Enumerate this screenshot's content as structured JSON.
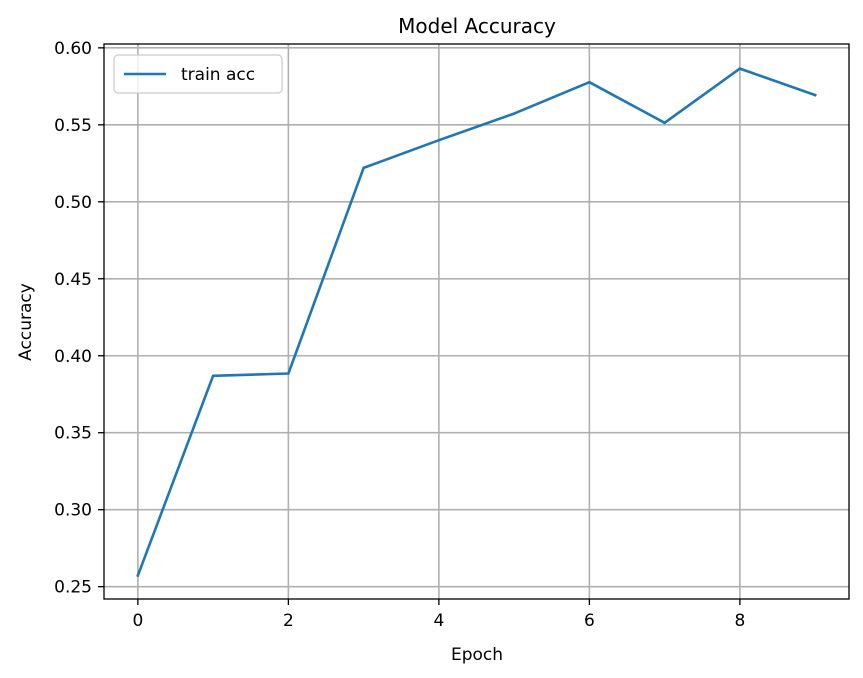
{
  "chart_data": {
    "type": "line",
    "title": "Model Accuracy",
    "xlabel": "Epoch",
    "ylabel": "Accuracy",
    "xlim": [
      -0.45,
      9.45
    ],
    "ylim": [
      0.242,
      0.6025
    ],
    "xticks": [
      0,
      2,
      4,
      6,
      8
    ],
    "xtick_labels": [
      "0",
      "2",
      "4",
      "6",
      "8"
    ],
    "yticks": [
      0.25,
      0.3,
      0.35,
      0.4,
      0.45,
      0.5,
      0.55,
      0.6
    ],
    "ytick_labels": [
      "0.25",
      "0.30",
      "0.35",
      "0.40",
      "0.45",
      "0.50",
      "0.55",
      "0.60"
    ],
    "grid": true,
    "legend_position": "upper-left",
    "series": [
      {
        "name": "train acc",
        "color": "#1f77b4",
        "x": [
          0,
          1,
          2,
          3,
          4,
          5,
          6,
          7,
          8,
          9
        ],
        "y": [
          0.2573,
          0.387,
          0.3885,
          0.522,
          0.54,
          0.5573,
          0.5777,
          0.5513,
          0.5865,
          0.5693
        ]
      }
    ]
  }
}
